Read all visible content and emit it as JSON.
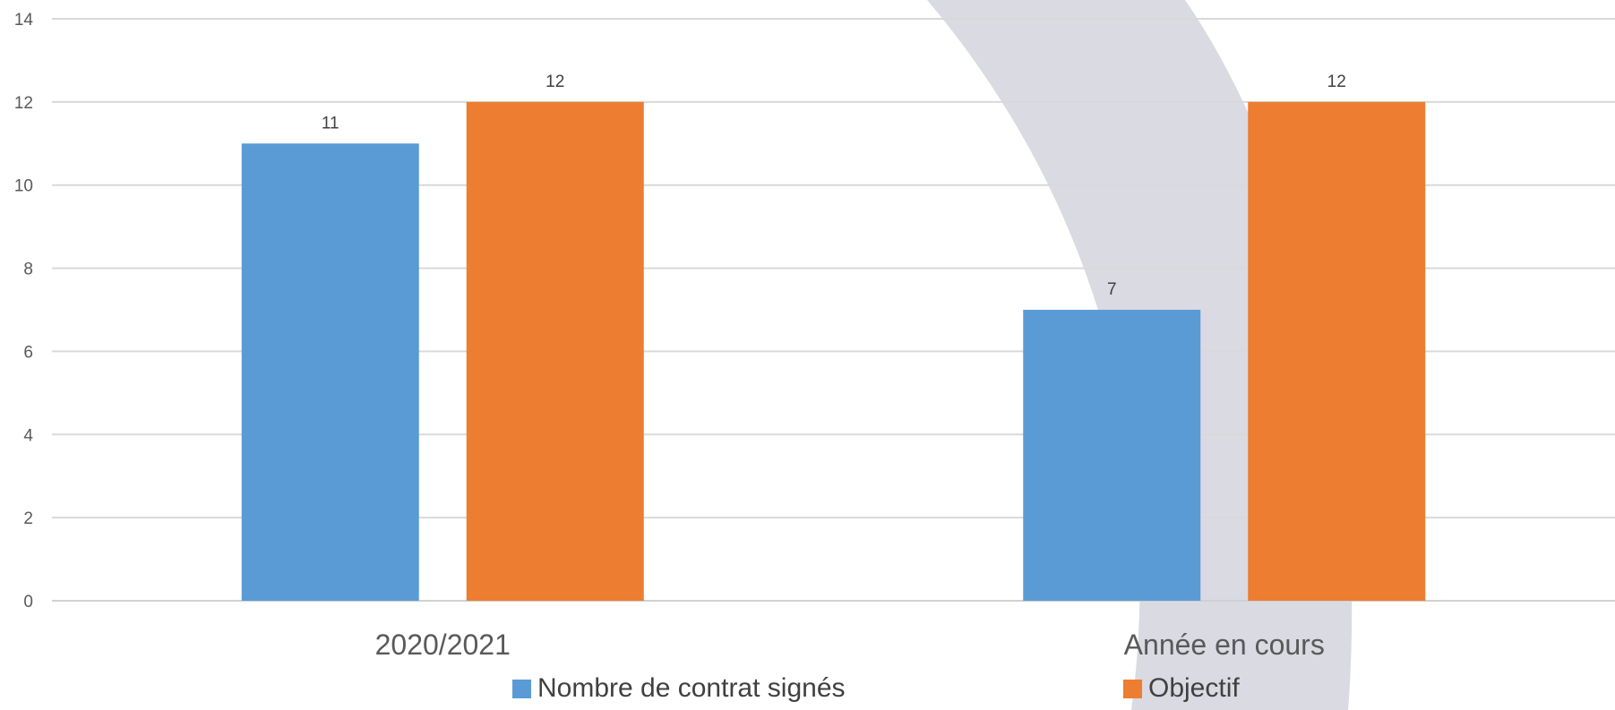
{
  "chart_data": {
    "type": "bar",
    "categories": [
      "2020/2021",
      "Année en cours"
    ],
    "series": [
      {
        "name": "Nombre de contrat signés",
        "values": [
          11,
          7
        ],
        "color": "#5B9BD5"
      },
      {
        "name": "Objectif",
        "values": [
          12,
          12
        ],
        "color": "#ED7D31"
      }
    ],
    "ylim": [
      0,
      14
    ],
    "yticks": [
      0,
      2,
      4,
      6,
      8,
      10,
      12,
      14
    ],
    "data_labels": true,
    "grid": true,
    "legend_position": "bottom",
    "decoration_color": "#D9DAE2"
  }
}
